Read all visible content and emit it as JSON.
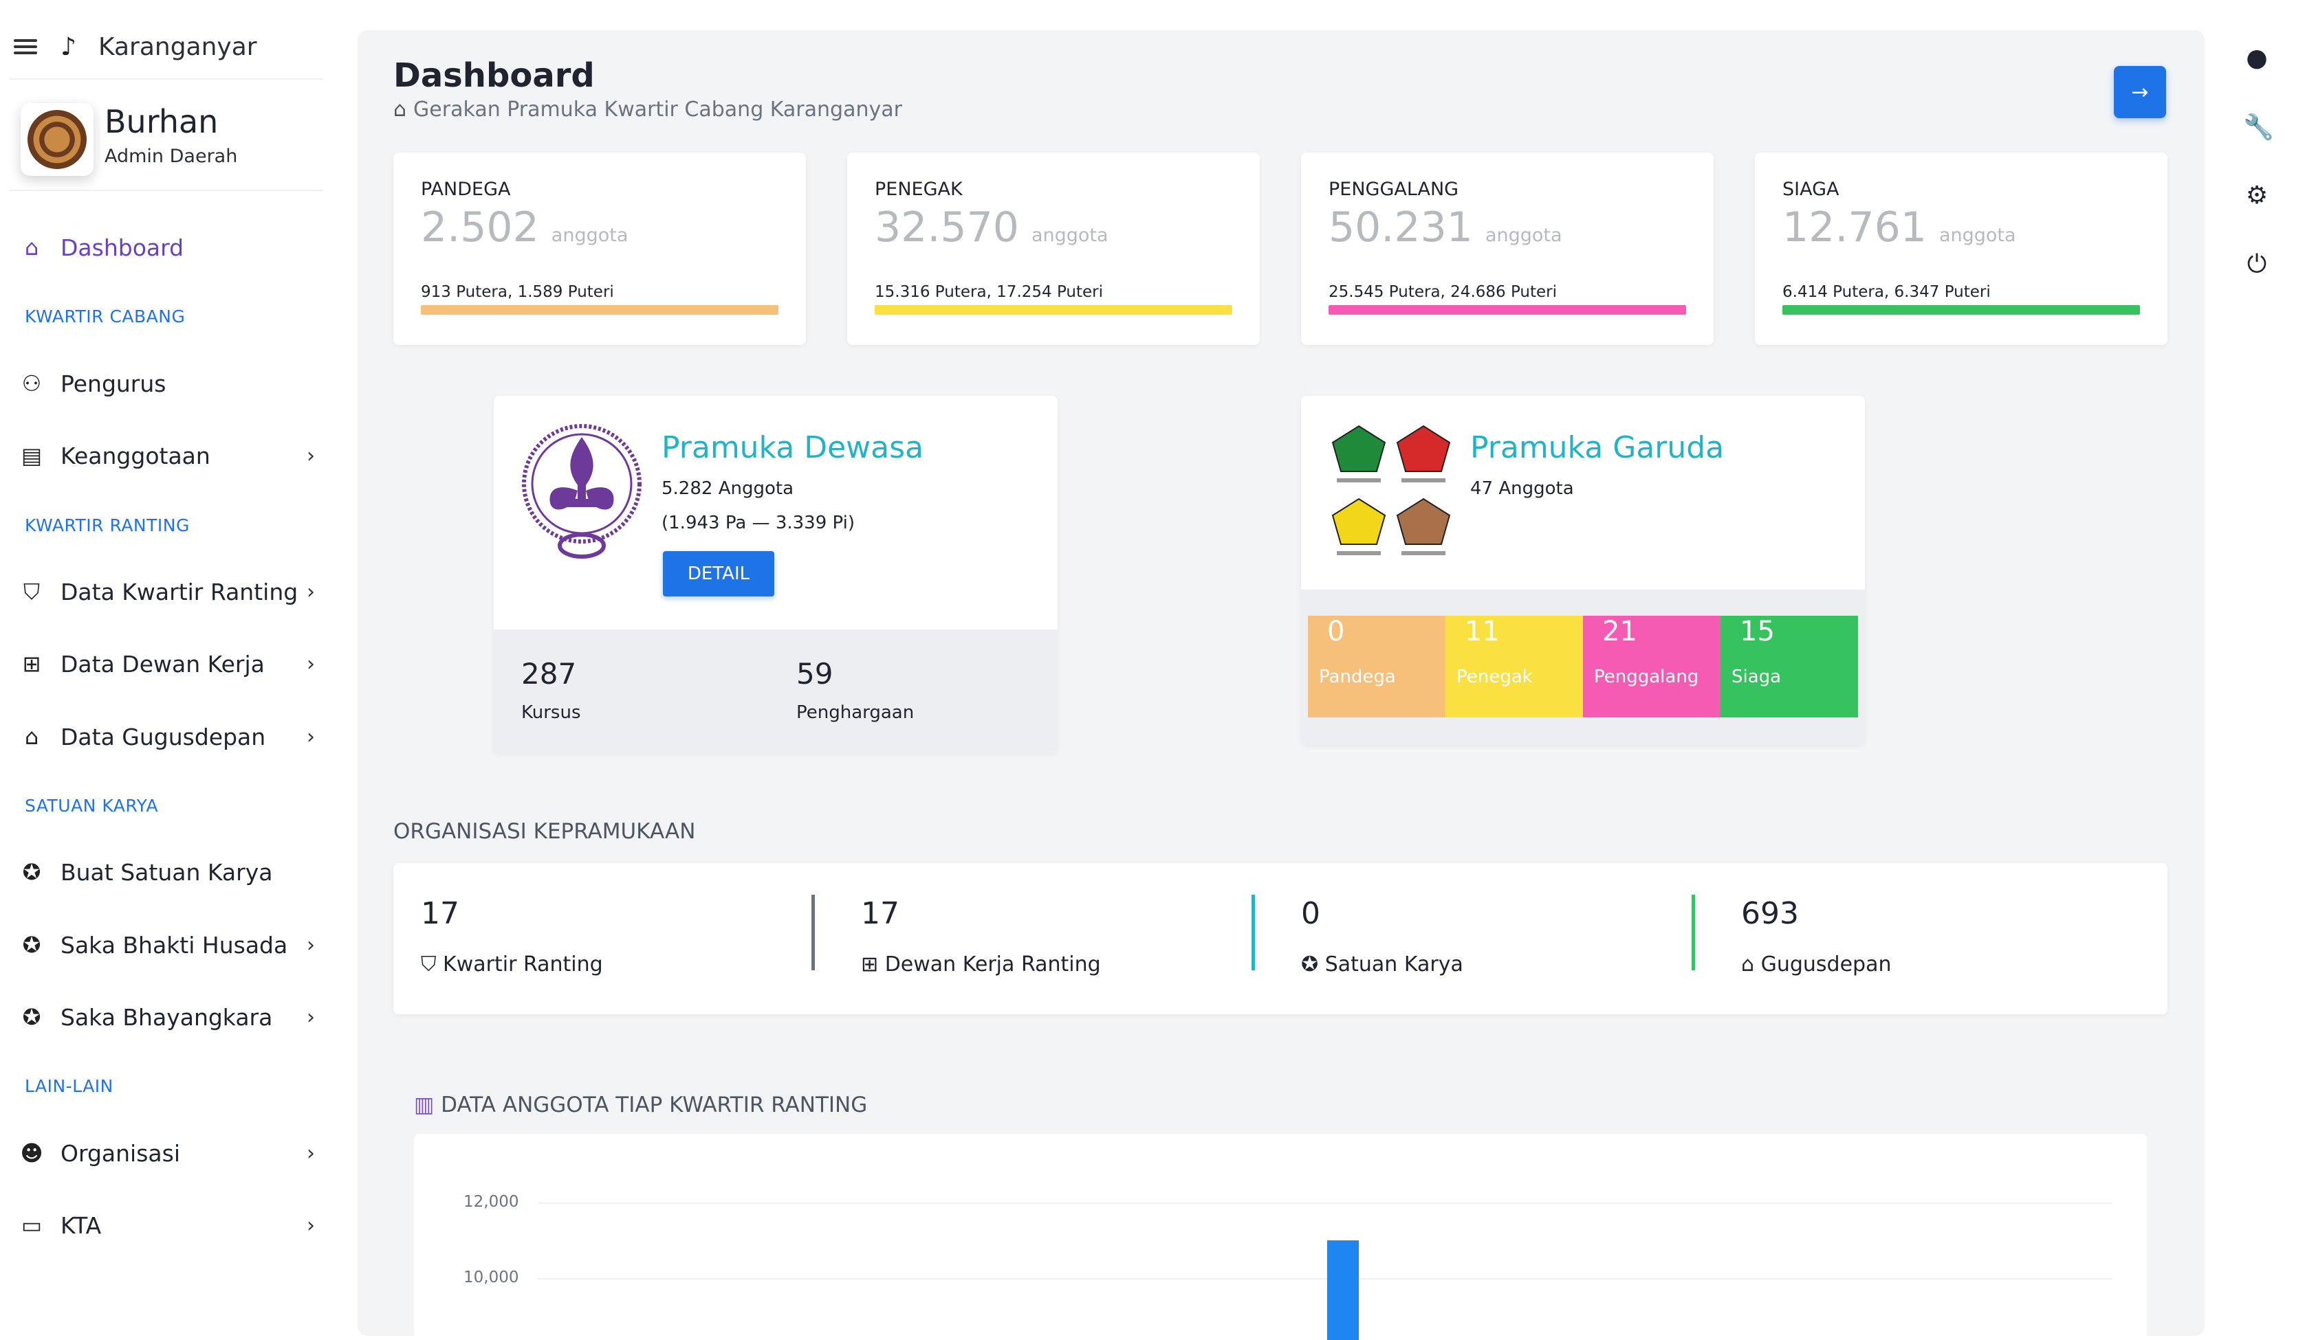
{
  "header": {
    "brand": "Karanganyar"
  },
  "user": {
    "name": "Burhan",
    "role": "Admin Daerah"
  },
  "sidebar": {
    "active": "Dashboard",
    "sections": {
      "kwartir_cabang": "KWARTIR CABANG",
      "kwartir_ranting": "KWARTIR RANTING",
      "satuan_karya": "SATUAN KARYA",
      "lain_lain": "LAIN-LAIN"
    },
    "items": {
      "dashboard": "Dashboard",
      "pengurus": "Pengurus",
      "keanggotaan": "Keanggotaan",
      "data_kwartir_ranting": "Data Kwartir Ranting",
      "data_dewan_kerja": "Data Dewan Kerja",
      "data_gugusdepan": "Data Gugusdepan",
      "buat_satuan_karya": "Buat Satuan Karya",
      "saka_bhakti_husada": "Saka Bhakti Husada",
      "saka_bhayangkara": "Saka Bhayangkara",
      "organisasi": "Organisasi",
      "kta": "KTA"
    }
  },
  "page": {
    "title": "Dashboard",
    "subtitle": "Gerakan Pramuka Kwartir Cabang Karanganyar"
  },
  "stats": [
    {
      "label": "PANDEGA",
      "value": "2.502",
      "unit": "anggota",
      "detail": "913 Putera, 1.589 Puteri",
      "color": "#f6c07a"
    },
    {
      "label": "PENEGAK",
      "value": "32.570",
      "unit": "anggota",
      "detail": "15.316 Putera, 17.254 Puteri",
      "color": "#fbe041"
    },
    {
      "label": "PENGGALANG",
      "value": "50.231",
      "unit": "anggota",
      "detail": "25.545 Putera, 24.686 Puteri",
      "color": "#f65bb4"
    },
    {
      "label": "SIAGA",
      "value": "12.761",
      "unit": "anggota",
      "detail": "6.414 Putera, 6.347 Puteri",
      "color": "#36c25f"
    }
  ],
  "pramuka_dewasa": {
    "title": "Pramuka Dewasa",
    "count": "5.282 Anggota",
    "breakdown": "(1.943 Pa — 3.339 Pi)",
    "button": "DETAIL",
    "kursus_value": "287",
    "kursus_label": "Kursus",
    "penghargaan_value": "59",
    "penghargaan_label": "Penghargaan"
  },
  "pramuka_garuda": {
    "title": "Pramuka Garuda",
    "count": "47 Anggota",
    "tiles": [
      {
        "value": "0",
        "label": "Pandega",
        "color": "#f6c07a"
      },
      {
        "value": "11",
        "label": "Penegak",
        "color": "#fbe041"
      },
      {
        "value": "21",
        "label": "Penggalang",
        "color": "#f65bb4"
      },
      {
        "value": "15",
        "label": "Siaga",
        "color": "#36c25f"
      }
    ]
  },
  "organisasi": {
    "heading": "ORGANISASI KEPRAMUKAAN",
    "items": [
      {
        "value": "17",
        "label": "Kwartir Ranting",
        "icon": "shield-check-icon"
      },
      {
        "value": "17",
        "label": "Dewan Kerja Ranting",
        "icon": "first-aid-icon"
      },
      {
        "value": "0",
        "label": "Satuan Karya",
        "icon": "star-circle-icon"
      },
      {
        "value": "693",
        "label": "Gugusdepan",
        "icon": "bank-icon"
      }
    ]
  },
  "chart": {
    "heading": "DATA ANGGOTA TIAP KWARTIR RANTING"
  },
  "chart_data": {
    "type": "bar",
    "title": "DATA ANGGOTA TIAP KWARTIR RANTING",
    "yticks": [
      "12,000",
      "10,000"
    ],
    "values": [
      11000
    ],
    "ylim": [
      10000,
      12000
    ]
  }
}
